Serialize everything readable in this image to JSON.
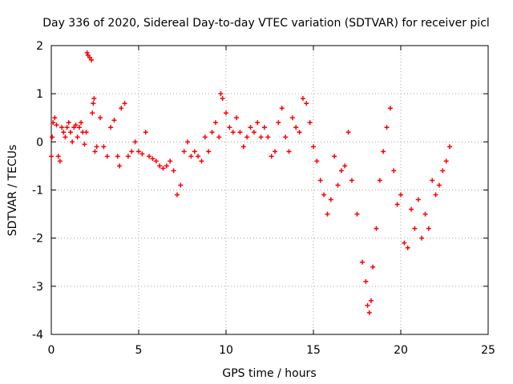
{
  "chart_data": {
    "type": "scatter",
    "title": "Day 336 of 2020, Sidereal Day-to-day VTEC variation (SDTVAR) for receiver picl",
    "xlabel": "GPS time / hours",
    "ylabel": "SDTVAR / TECUs",
    "xlim": [
      0,
      25
    ],
    "ylim": [
      -4,
      2
    ],
    "x_ticks": [
      0,
      5,
      10,
      15,
      20,
      25
    ],
    "y_ticks": [
      -4,
      -3,
      -2,
      -1,
      0,
      1,
      2
    ],
    "grid": true,
    "marker": "+",
    "series": [
      {
        "name": "SDTVAR",
        "color": "#ff0000",
        "points": [
          [
            0.0,
            -0.3
          ],
          [
            0.05,
            0.1
          ],
          [
            0.1,
            0.4
          ],
          [
            0.2,
            0.5
          ],
          [
            0.3,
            0.35
          ],
          [
            0.4,
            -0.3
          ],
          [
            0.5,
            -0.4
          ],
          [
            0.6,
            0.3
          ],
          [
            0.7,
            0.2
          ],
          [
            0.8,
            0.1
          ],
          [
            0.9,
            0.3
          ],
          [
            1.0,
            0.4
          ],
          [
            1.1,
            0.2
          ],
          [
            1.2,
            0.0
          ],
          [
            1.3,
            0.3
          ],
          [
            1.4,
            0.35
          ],
          [
            1.5,
            0.1
          ],
          [
            1.6,
            0.3
          ],
          [
            1.7,
            0.4
          ],
          [
            1.8,
            0.2
          ],
          [
            1.9,
            -0.05
          ],
          [
            2.0,
            0.2
          ],
          [
            2.05,
            1.85
          ],
          [
            2.1,
            1.8
          ],
          [
            2.2,
            1.75
          ],
          [
            2.3,
            1.7
          ],
          [
            2.35,
            0.6
          ],
          [
            2.4,
            0.8
          ],
          [
            2.45,
            0.9
          ],
          [
            2.5,
            -0.2
          ],
          [
            2.6,
            -0.1
          ],
          [
            2.8,
            0.5
          ],
          [
            3.0,
            -0.1
          ],
          [
            3.2,
            -0.3
          ],
          [
            3.4,
            0.3
          ],
          [
            3.6,
            0.45
          ],
          [
            3.8,
            -0.3
          ],
          [
            3.9,
            -0.5
          ],
          [
            4.0,
            0.7
          ],
          [
            4.2,
            0.8
          ],
          [
            4.4,
            -0.3
          ],
          [
            4.6,
            -0.2
          ],
          [
            4.8,
            0.0
          ],
          [
            5.0,
            -0.2
          ],
          [
            5.2,
            -0.25
          ],
          [
            5.4,
            0.2
          ],
          [
            5.6,
            -0.3
          ],
          [
            5.8,
            -0.35
          ],
          [
            6.0,
            -0.4
          ],
          [
            6.2,
            -0.5
          ],
          [
            6.4,
            -0.55
          ],
          [
            6.6,
            -0.5
          ],
          [
            6.8,
            -0.4
          ],
          [
            7.0,
            -0.6
          ],
          [
            7.2,
            -1.1
          ],
          [
            7.4,
            -0.9
          ],
          [
            7.6,
            -0.2
          ],
          [
            7.8,
            0.0
          ],
          [
            8.0,
            -0.3
          ],
          [
            8.2,
            -0.2
          ],
          [
            8.4,
            -0.3
          ],
          [
            8.6,
            -0.4
          ],
          [
            8.8,
            0.1
          ],
          [
            9.0,
            -0.2
          ],
          [
            9.2,
            0.2
          ],
          [
            9.4,
            0.4
          ],
          [
            9.6,
            0.1
          ],
          [
            9.7,
            1.0
          ],
          [
            9.8,
            0.9
          ],
          [
            10.0,
            0.6
          ],
          [
            10.2,
            0.3
          ],
          [
            10.4,
            0.2
          ],
          [
            10.6,
            0.5
          ],
          [
            10.8,
            0.2
          ],
          [
            11.0,
            -0.1
          ],
          [
            11.2,
            0.1
          ],
          [
            11.4,
            0.3
          ],
          [
            11.6,
            0.2
          ],
          [
            11.8,
            0.4
          ],
          [
            12.0,
            0.1
          ],
          [
            12.2,
            0.3
          ],
          [
            12.4,
            0.1
          ],
          [
            12.6,
            -0.3
          ],
          [
            12.8,
            -0.2
          ],
          [
            13.0,
            0.4
          ],
          [
            13.2,
            0.7
          ],
          [
            13.4,
            0.1
          ],
          [
            13.6,
            -0.2
          ],
          [
            13.8,
            0.5
          ],
          [
            14.0,
            0.3
          ],
          [
            14.2,
            0.2
          ],
          [
            14.4,
            0.9
          ],
          [
            14.6,
            0.8
          ],
          [
            14.8,
            0.4
          ],
          [
            15.0,
            -0.1
          ],
          [
            15.2,
            -0.4
          ],
          [
            15.4,
            -0.8
          ],
          [
            15.6,
            -1.1
          ],
          [
            15.8,
            -1.5
          ],
          [
            16.0,
            -1.2
          ],
          [
            16.2,
            -0.3
          ],
          [
            16.4,
            -0.9
          ],
          [
            16.6,
            -0.6
          ],
          [
            16.8,
            -0.5
          ],
          [
            17.0,
            0.2
          ],
          [
            17.2,
            -0.8
          ],
          [
            17.5,
            -1.5
          ],
          [
            17.8,
            -2.5
          ],
          [
            18.0,
            -2.9
          ],
          [
            18.1,
            -3.4
          ],
          [
            18.2,
            -3.55
          ],
          [
            18.3,
            -3.3
          ],
          [
            18.4,
            -2.6
          ],
          [
            18.6,
            -1.8
          ],
          [
            18.8,
            -0.8
          ],
          [
            19.0,
            -0.2
          ],
          [
            19.2,
            0.3
          ],
          [
            19.4,
            0.7
          ],
          [
            19.6,
            -0.6
          ],
          [
            19.8,
            -1.3
          ],
          [
            20.0,
            -1.1
          ],
          [
            20.2,
            -2.1
          ],
          [
            20.4,
            -2.2
          ],
          [
            20.6,
            -1.4
          ],
          [
            20.8,
            -1.8
          ],
          [
            21.0,
            -1.2
          ],
          [
            21.2,
            -2.0
          ],
          [
            21.4,
            -1.5
          ],
          [
            21.6,
            -1.8
          ],
          [
            21.8,
            -0.8
          ],
          [
            22.0,
            -1.1
          ],
          [
            22.2,
            -0.9
          ],
          [
            22.4,
            -0.6
          ],
          [
            22.6,
            -0.4
          ],
          [
            22.8,
            -0.1
          ]
        ]
      }
    ]
  }
}
